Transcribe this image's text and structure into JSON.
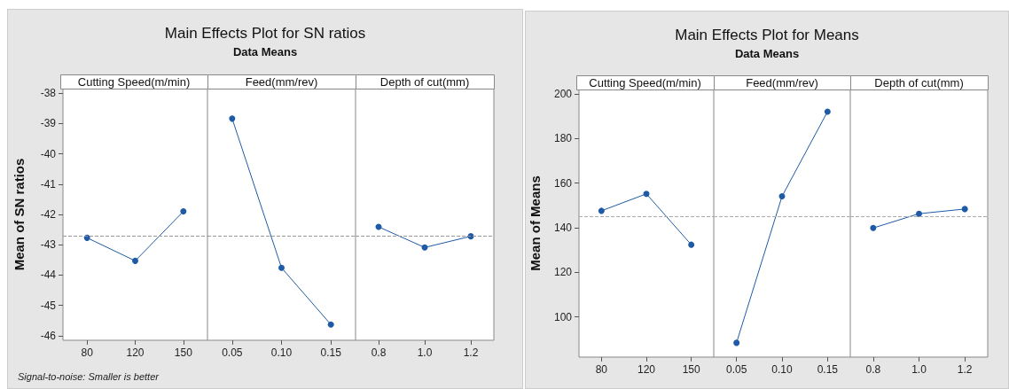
{
  "chart_data": [
    {
      "type": "line",
      "title": "Main Effects Plot for SN ratios",
      "xlabel": "Cutting Speed(m/min)",
      "ylabel": "Mean of SN ratios",
      "annotations": [
        "Signal-to-noise: Smaller is better"
      ],
      "categories": [
        "80",
        "120",
        "150"
      ],
      "series": [
        {
          "color": "#1f5aa6",
          "values": [
            -42.77,
            -43.53,
            -41.9
          ]
        }
      ],
      "ylim": [
        -46.15,
        -37.85
      ],
      "yticks": [
        -46,
        -45,
        -44,
        -43,
        -42,
        -41,
        -40,
        -39,
        -38
      ],
      "marker": "circle",
      "ref_lines": [
        {
          "axis": "y",
          "value": -42.72,
          "color": "#999999",
          "line_style": "dashed"
        }
      ]
    },
    {
      "type": "line",
      "subtitle": "Data Means",
      "xlabel": "Feed(mm/rev)",
      "categories": [
        "0.05",
        "0.10",
        "0.15"
      ],
      "series": [
        {
          "color": "#1f5aa6",
          "values": [
            -38.84,
            -43.76,
            -45.63
          ]
        }
      ],
      "ylim": [
        -46.15,
        -37.85
      ],
      "yticks": [
        -46,
        -45,
        -44,
        -43,
        -42,
        -41,
        -40,
        -39,
        -38
      ],
      "tick_labels": "x",
      "marker": "circle",
      "ref_lines": [
        {
          "axis": "y",
          "value": -42.72,
          "color": "#999999",
          "line_style": "dashed"
        }
      ]
    },
    {
      "type": "line",
      "xlabel": "Depth of cut(mm)",
      "categories": [
        "0.8",
        "1.0",
        "1.2"
      ],
      "series": [
        {
          "color": "#1f5aa6",
          "values": [
            -42.41,
            -43.09,
            -42.72
          ]
        }
      ],
      "ylim": [
        -46.15,
        -37.85
      ],
      "yticks": [
        -46,
        -45,
        -44,
        -43,
        -42,
        -41,
        -40,
        -39,
        -38
      ],
      "tick_labels": "x",
      "marker": "circle",
      "ref_lines": [
        {
          "axis": "y",
          "value": -42.72,
          "color": "#999999",
          "line_style": "dashed"
        }
      ]
    },
    {
      "type": "line",
      "title": "Main Effects Plot for Means",
      "xlabel": "Cutting Speed(m/min)",
      "ylabel": "Mean of Means",
      "categories": [
        "80",
        "120",
        "150"
      ],
      "series": [
        {
          "color": "#1f5aa6",
          "values": [
            147.6,
            155.2,
            132.4
          ]
        }
      ],
      "ylim": [
        82,
        202
      ],
      "yticks": [
        100,
        120,
        140,
        160,
        180,
        200
      ],
      "marker": "circle",
      "ref_lines": [
        {
          "axis": "y",
          "value": 145,
          "color": "#aaaaaa",
          "line_style": "dashed"
        }
      ]
    },
    {
      "type": "line",
      "subtitle": "Data Means",
      "xlabel": "Feed(mm/rev)",
      "categories": [
        "0.05",
        "0.10",
        "0.15"
      ],
      "series": [
        {
          "color": "#1f5aa6",
          "values": [
            88.4,
            154.1,
            192.1
          ]
        }
      ],
      "ylim": [
        82,
        202
      ],
      "yticks": [
        100,
        120,
        140,
        160,
        180,
        200
      ],
      "tick_labels": "x",
      "marker": "circle",
      "ref_lines": [
        {
          "axis": "y",
          "value": 145,
          "color": "#aaaaaa",
          "line_style": "dashed"
        }
      ]
    },
    {
      "type": "line",
      "xlabel": "Depth of cut(mm)",
      "categories": [
        "0.8",
        "1.0",
        "1.2"
      ],
      "series": [
        {
          "color": "#1f5aa6",
          "values": [
            139.9,
            146.3,
            148.4
          ]
        }
      ],
      "ylim": [
        82,
        202
      ],
      "yticks": [
        100,
        120,
        140,
        160,
        180,
        200
      ],
      "tick_labels": "x",
      "marker": "circle",
      "ref_lines": [
        {
          "axis": "y",
          "value": 145,
          "color": "#aaaaaa",
          "line_style": "dashed"
        }
      ]
    }
  ]
}
